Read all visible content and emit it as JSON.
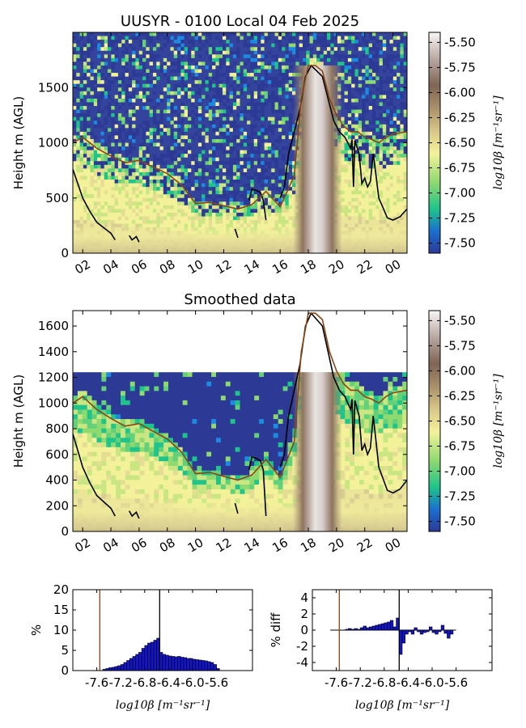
{
  "chart_data": [
    {
      "type": "heatmap",
      "title": "UUSYR - 0100 Local 04 Feb 2025",
      "ylabel": "Height m (AGL)",
      "x_ticks": [
        "02",
        "04",
        "06",
        "08",
        "10",
        "12",
        "14",
        "16",
        "18",
        "20",
        "22",
        "00"
      ],
      "x_tick_hours": [
        2,
        4,
        6,
        8,
        10,
        12,
        14,
        16,
        18,
        20,
        22,
        24
      ],
      "xlim": [
        1.3,
        25.0
      ],
      "ylim": [
        0,
        2000
      ],
      "y_ticks": [
        0,
        500,
        1000,
        1500
      ],
      "colorbar": {
        "label": "log10β [m⁻¹sr⁻¹]",
        "ticks": [
          "-5.50",
          "-5.75",
          "-6.00",
          "-6.25",
          "-6.50",
          "-6.75",
          "-7.00",
          "-7.25",
          "-7.50"
        ],
        "tick_values": [
          -5.5,
          -5.75,
          -6.0,
          -6.25,
          -6.5,
          -6.75,
          -7.0,
          -7.25,
          -7.5
        ],
        "range": [
          -7.6,
          -5.4
        ],
        "colors": [
          "#2c3a96",
          "#1b8ae0",
          "#1ec48a",
          "#8ed970",
          "#f3f29a",
          "#d9c98a",
          "#a98e6a",
          "#7f6553",
          "#b8a8a3",
          "#f4f2f2"
        ]
      },
      "series": [
        {
          "name": "",
          "color": "#000000",
          "x": [
            1.3,
            1.6,
            2.0,
            2.5,
            3.0,
            3.5,
            4.0,
            4.3,
            null,
            5.3,
            5.5,
            5.8,
            6.0,
            null,
            12.8,
            13.0,
            null,
            13.8,
            14.0,
            14.3,
            14.6,
            14.8,
            15.0,
            null,
            16.0,
            16.3,
            16.6,
            17.0,
            17.4,
            17.8,
            18.2,
            18.6,
            19.0,
            19.4,
            19.8,
            20.2,
            20.6,
            20.8,
            21.0,
            21.1,
            21.2,
            21.3,
            21.4,
            21.6,
            21.8,
            22.0,
            22.2,
            22.4,
            22.6,
            22.8,
            23.0,
            23.3,
            23.6,
            24.0,
            24.5,
            25.0
          ],
          "y": [
            760,
            650,
            500,
            380,
            280,
            230,
            180,
            120,
            null,
            160,
            120,
            150,
            100,
            null,
            220,
            140,
            null,
            480,
            580,
            570,
            550,
            480,
            300,
            null,
            500,
            600,
            900,
            1100,
            1300,
            1600,
            1700,
            1650,
            1600,
            1400,
            1200,
            1100,
            1050,
            1000,
            950,
            1030,
            600,
            1020,
            980,
            900,
            630,
            680,
            600,
            650,
            900,
            700,
            500,
            410,
            320,
            300,
            330,
            400
          ],
          "y_gap_segments": "line breaks at null values"
        },
        {
          "name": "",
          "color": "#8b4513",
          "x": [
            1.3,
            2.0,
            3.0,
            4.0,
            5.0,
            6.0,
            7.0,
            8.0,
            9.0,
            10.0,
            11.0,
            12.0,
            13.0,
            14.0,
            15.0,
            16.0,
            17.0,
            17.5,
            18.0,
            18.5,
            19.0,
            19.5,
            20.0,
            20.5,
            21.0,
            21.5,
            22.0,
            22.5,
            23.0,
            23.5,
            24.0,
            25.0
          ],
          "y": [
            1000,
            1050,
            950,
            880,
            820,
            840,
            780,
            720,
            620,
            450,
            460,
            430,
            400,
            440,
            560,
            420,
            700,
            1400,
            1700,
            1700,
            1650,
            1400,
            1250,
            1150,
            1100,
            1100,
            1050,
            1030,
            1000,
            1050,
            1080,
            1100
          ]
        }
      ]
    },
    {
      "type": "heatmap",
      "title": "Smoothed data",
      "ylabel": "Height m (AGL)",
      "x_ticks": [
        "02",
        "04",
        "06",
        "08",
        "10",
        "12",
        "14",
        "16",
        "18",
        "20",
        "22",
        "00"
      ],
      "x_tick_hours": [
        2,
        4,
        6,
        8,
        10,
        12,
        14,
        16,
        18,
        20,
        22,
        24
      ],
      "xlim": [
        1.3,
        25.0
      ],
      "ylim": [
        0,
        1720
      ],
      "y_ticks": [
        0,
        200,
        400,
        600,
        800,
        1000,
        1200,
        1400,
        1600
      ],
      "data_top": 1240,
      "colorbar": {
        "label": "log10β [m⁻¹sr⁻¹]",
        "ticks": [
          "-5.50",
          "-5.75",
          "-6.00",
          "-6.25",
          "-6.50",
          "-6.75",
          "-7.00",
          "-7.25",
          "-7.50"
        ],
        "tick_values": [
          -5.5,
          -5.75,
          -6.0,
          -6.25,
          -6.5,
          -6.75,
          -7.0,
          -7.25,
          -7.5
        ],
        "range": [
          -7.6,
          -5.4
        ]
      },
      "series": [
        {
          "name": "",
          "color": "#000000",
          "x": [
            1.3,
            1.6,
            2.0,
            2.5,
            3.0,
            3.5,
            4.0,
            4.3,
            null,
            5.3,
            5.5,
            5.8,
            6.0,
            null,
            12.8,
            13.0,
            null,
            13.8,
            14.0,
            14.3,
            14.6,
            14.8,
            15.0,
            null,
            16.0,
            16.3,
            16.6,
            17.0,
            17.4,
            17.8,
            18.2,
            18.6,
            19.0,
            19.4,
            19.8,
            20.2,
            20.6,
            20.8,
            21.0,
            21.1,
            21.2,
            21.3,
            21.4,
            21.6,
            21.8,
            22.0,
            22.2,
            22.4,
            22.6,
            22.8,
            23.0,
            23.3,
            23.6,
            24.0,
            24.5,
            25.0
          ],
          "y": [
            760,
            650,
            500,
            380,
            280,
            230,
            180,
            120,
            null,
            160,
            120,
            150,
            100,
            null,
            220,
            140,
            null,
            480,
            580,
            570,
            550,
            480,
            120,
            null,
            500,
            600,
            900,
            1100,
            1300,
            1600,
            1700,
            1650,
            1600,
            1400,
            1200,
            1100,
            1050,
            1000,
            950,
            1030,
            600,
            1020,
            980,
            900,
            630,
            680,
            600,
            650,
            900,
            700,
            500,
            410,
            320,
            300,
            330,
            400
          ]
        },
        {
          "name": "",
          "color": "#8b4513",
          "x": [
            1.3,
            2.0,
            3.0,
            4.0,
            5.0,
            6.0,
            7.0,
            8.0,
            9.0,
            10.0,
            11.0,
            12.0,
            13.0,
            14.0,
            15.0,
            16.0,
            17.0,
            17.5,
            18.0,
            18.5,
            19.0,
            19.5,
            20.0,
            20.5,
            21.0,
            21.5,
            22.0,
            22.5,
            23.0,
            23.5,
            24.0,
            25.0
          ],
          "y": [
            1000,
            1050,
            950,
            880,
            820,
            840,
            780,
            720,
            620,
            450,
            460,
            430,
            400,
            440,
            560,
            420,
            700,
            1400,
            1700,
            1700,
            1650,
            1400,
            1250,
            1150,
            1100,
            1100,
            1050,
            1030,
            1000,
            1050,
            1080,
            1100
          ]
        }
      ]
    },
    {
      "type": "bar",
      "ylabel": "%",
      "xlabel": "log10β [m⁻¹sr⁻¹]",
      "x_ticks": [
        "-7.6",
        "-7.2",
        "-6.8",
        "-6.4",
        "-6.0",
        "-5.6"
      ],
      "x_tick_values": [
        -7.6,
        -7.2,
        -6.8,
        -6.4,
        -6.0,
        -5.6
      ],
      "xlim": [
        -8.0,
        -5.0
      ],
      "ylim": [
        0,
        20
      ],
      "y_ticks": [
        0,
        5,
        10,
        15,
        20
      ],
      "vlines": [
        {
          "x": -7.55,
          "color": "#8b4513"
        },
        {
          "x": -6.55,
          "color": "#000000"
        }
      ],
      "bin_width": 0.05,
      "x": [
        -7.6,
        -7.55,
        -7.5,
        -7.45,
        -7.4,
        -7.35,
        -7.3,
        -7.25,
        -7.2,
        -7.15,
        -7.1,
        -7.05,
        -7.0,
        -6.95,
        -6.9,
        -6.85,
        -6.8,
        -6.75,
        -6.7,
        -6.65,
        -6.6,
        -6.55,
        -6.5,
        -6.45,
        -6.4,
        -6.35,
        -6.3,
        -6.25,
        -6.2,
        -6.15,
        -6.1,
        -6.05,
        -6.0,
        -5.95,
        -5.9,
        -5.85,
        -5.8,
        -5.75,
        -5.7,
        -5.65,
        -5.6
      ],
      "values": [
        0,
        0,
        0.3,
        0.5,
        0.7,
        0.8,
        1.0,
        1.2,
        1.5,
        2.0,
        2.5,
        3.0,
        3.5,
        4.0,
        4.5,
        5.5,
        6.2,
        6.8,
        7.0,
        7.5,
        8.0,
        4.5,
        4.0,
        3.8,
        3.6,
        3.5,
        3.4,
        3.5,
        3.3,
        3.2,
        3.0,
        3.0,
        2.8,
        2.7,
        2.6,
        2.5,
        2.4,
        2.2,
        2.0,
        1.5,
        0.5
      ]
    },
    {
      "type": "bar",
      "ylabel": "% diff",
      "xlabel": "log10β [m⁻¹sr⁻¹]",
      "x_ticks": [
        "-7.6",
        "-7.2",
        "-6.8",
        "-6.4",
        "-6.0",
        "-5.6"
      ],
      "x_tick_values": [
        -7.6,
        -7.2,
        -6.8,
        -6.4,
        -6.0,
        -5.6
      ],
      "xlim": [
        -8.0,
        -5.0
      ],
      "ylim": [
        -5,
        5
      ],
      "y_ticks": [
        -4,
        -2,
        0,
        2,
        4
      ],
      "vlines": [
        {
          "x": -7.55,
          "color": "#8b4513"
        },
        {
          "x": -6.55,
          "color": "#000000"
        }
      ],
      "bin_width": 0.05,
      "baseline_range": [
        -7.7,
        -5.6
      ],
      "x": [
        -7.45,
        -7.4,
        -7.35,
        -7.3,
        -7.25,
        -7.2,
        -7.15,
        -7.1,
        -7.05,
        -7.0,
        -6.95,
        -6.9,
        -6.85,
        -6.8,
        -6.75,
        -6.7,
        -6.65,
        -6.6,
        -6.55,
        -6.5,
        -6.45,
        -6.4,
        -6.35,
        -6.3,
        -6.25,
        -6.2,
        -6.15,
        -6.1,
        -6.05,
        -6.0,
        -5.95,
        -5.9,
        -5.85,
        -5.8,
        -5.75,
        -5.7
      ],
      "values": [
        0.1,
        0.2,
        0.1,
        0.2,
        0.1,
        0.3,
        0.5,
        0.3,
        0.4,
        0.5,
        0.6,
        0.7,
        0.8,
        0.9,
        1.0,
        1.2,
        0.4,
        1.5,
        -3.0,
        -1.6,
        -0.5,
        -0.2,
        -0.5,
        0.3,
        -0.2,
        -0.5,
        -0.3,
        -0.2,
        0.4,
        -0.3,
        -0.5,
        -0.2,
        0.6,
        -0.4,
        -1.0,
        -0.5
      ]
    }
  ]
}
